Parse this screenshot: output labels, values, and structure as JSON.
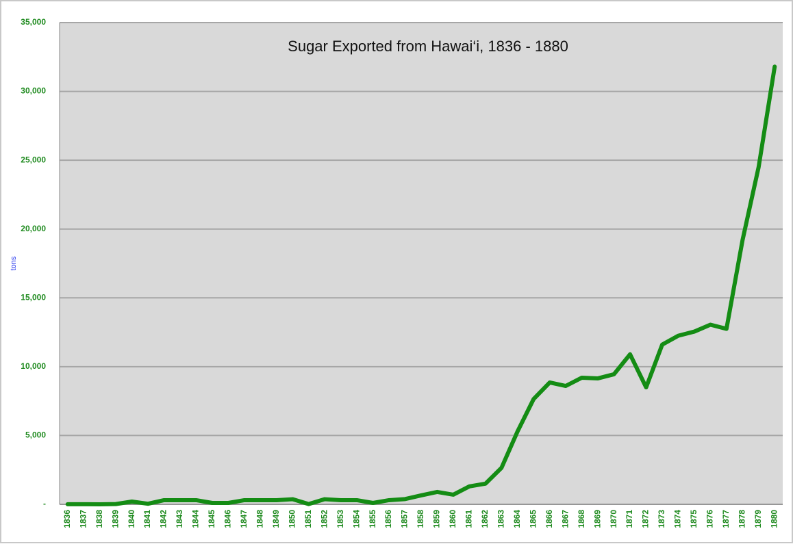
{
  "chart_data": {
    "type": "line",
    "title": "Sugar Exported from Hawai‘i, 1836 - 1880",
    "y_label": "tons",
    "categories": [
      "1836",
      "1837",
      "1838",
      "1839",
      "1840",
      "1841",
      "1842",
      "1843",
      "1844",
      "1845",
      "1846",
      "1847",
      "1848",
      "1849",
      "1850",
      "1851",
      "1852",
      "1853",
      "1854",
      "1855",
      "1856",
      "1857",
      "1858",
      "1859",
      "1860",
      "1861",
      "1862",
      "1863",
      "1864",
      "1865",
      "1866",
      "1867",
      "1868",
      "1869",
      "1870",
      "1871",
      "1872",
      "1873",
      "1874",
      "1875",
      "1876",
      "1877",
      "1878",
      "1879",
      "1880"
    ],
    "values": [
      4,
      4,
      2,
      20,
      200,
      40,
      300,
      300,
      300,
      100,
      100,
      300,
      300,
      300,
      370,
      20,
      370,
      300,
      300,
      100,
      300,
      380,
      650,
      900,
      700,
      1300,
      1500,
      2650,
      5300,
      7650,
      8850,
      8600,
      9200,
      9150,
      9450,
      10900,
      8500,
      11600,
      12250,
      12550,
      13050,
      12750,
      19200,
      24500,
      31800
    ],
    "color": "#148c14",
    "ylim": [
      0,
      35000
    ],
    "yticks": [
      {
        "value": 0,
        "label": "-"
      },
      {
        "value": 5000,
        "label": "5,000"
      },
      {
        "value": 10000,
        "label": "10,000"
      },
      {
        "value": 15000,
        "label": "15,000"
      },
      {
        "value": 20000,
        "label": "20,000"
      },
      {
        "value": 25000,
        "label": "25,000"
      },
      {
        "value": 30000,
        "label": "30,000"
      },
      {
        "value": 35000,
        "label": "35,000"
      }
    ],
    "grid": true
  }
}
